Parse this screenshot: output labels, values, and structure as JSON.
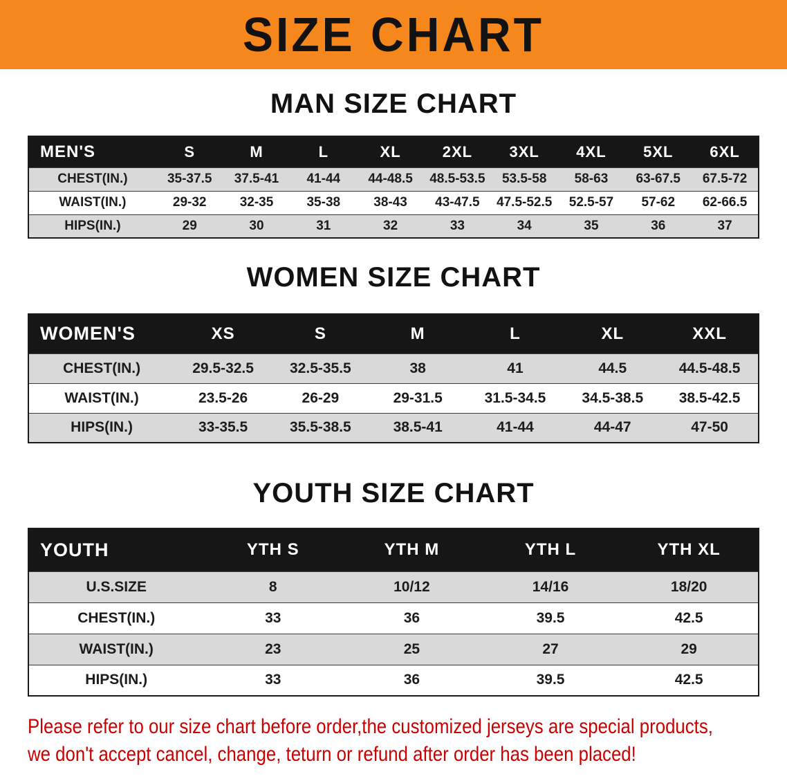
{
  "banner": {
    "title": "SIZE CHART"
  },
  "sections": [
    {
      "heading": "MAN SIZE CHART",
      "table": {
        "header": [
          "MEN'S",
          "S",
          "M",
          "L",
          "XL",
          "2XL",
          "3XL",
          "4XL",
          "5XL",
          "6XL"
        ],
        "rows": [
          [
            "CHEST(IN.)",
            "35-37.5",
            "37.5-41",
            "41-44",
            "44-48.5",
            "48.5-53.5",
            "53.5-58",
            "58-63",
            "63-67.5",
            "67.5-72"
          ],
          [
            "WAIST(IN.)",
            "29-32",
            "32-35",
            "35-38",
            "38-43",
            "43-47.5",
            "47.5-52.5",
            "52.5-57",
            "57-62",
            "62-66.5"
          ],
          [
            "HIPS(IN.)",
            "29",
            "30",
            "31",
            "32",
            "33",
            "34",
            "35",
            "36",
            "37"
          ]
        ]
      }
    },
    {
      "heading": "WOMEN SIZE CHART",
      "table": {
        "header": [
          "WOMEN'S",
          "XS",
          "S",
          "M",
          "L",
          "XL",
          "XXL"
        ],
        "rows": [
          [
            "CHEST(IN.)",
            "29.5-32.5",
            "32.5-35.5",
            "38",
            "41",
            "44.5",
            "44.5-48.5"
          ],
          [
            "WAIST(IN.)",
            "23.5-26",
            "26-29",
            "29-31.5",
            "31.5-34.5",
            "34.5-38.5",
            "38.5-42.5"
          ],
          [
            "HIPS(IN.)",
            "33-35.5",
            "35.5-38.5",
            "38.5-41",
            "41-44",
            "44-47",
            "47-50"
          ]
        ]
      }
    },
    {
      "heading": "YOUTH SIZE CHART",
      "table": {
        "header": [
          "YOUTH",
          "YTH S",
          "YTH M",
          "YTH L",
          "YTH XL"
        ],
        "rows": [
          [
            "U.S.SIZE",
            "8",
            "10/12",
            "14/16",
            "18/20"
          ],
          [
            "CHEST(IN.)",
            "33",
            "36",
            "39.5",
            "42.5"
          ],
          [
            "WAIST(IN.)",
            "23",
            "25",
            "27",
            "29"
          ],
          [
            "HIPS(IN.)",
            "33",
            "36",
            "39.5",
            "42.5"
          ]
        ]
      }
    }
  ],
  "footer": {
    "line1": "Please refer to our size chart before order,the customized jerseys are special products,",
    "line2": "we don't accept cancel, change, teturn or refund after order has been placed!",
    "text_color": "#cc0000"
  },
  "colors": {
    "banner_orange": "#f6871d",
    "table_header_black": "#161616",
    "row_gray": "#d9d9d9",
    "row_white": "#ffffff"
  }
}
